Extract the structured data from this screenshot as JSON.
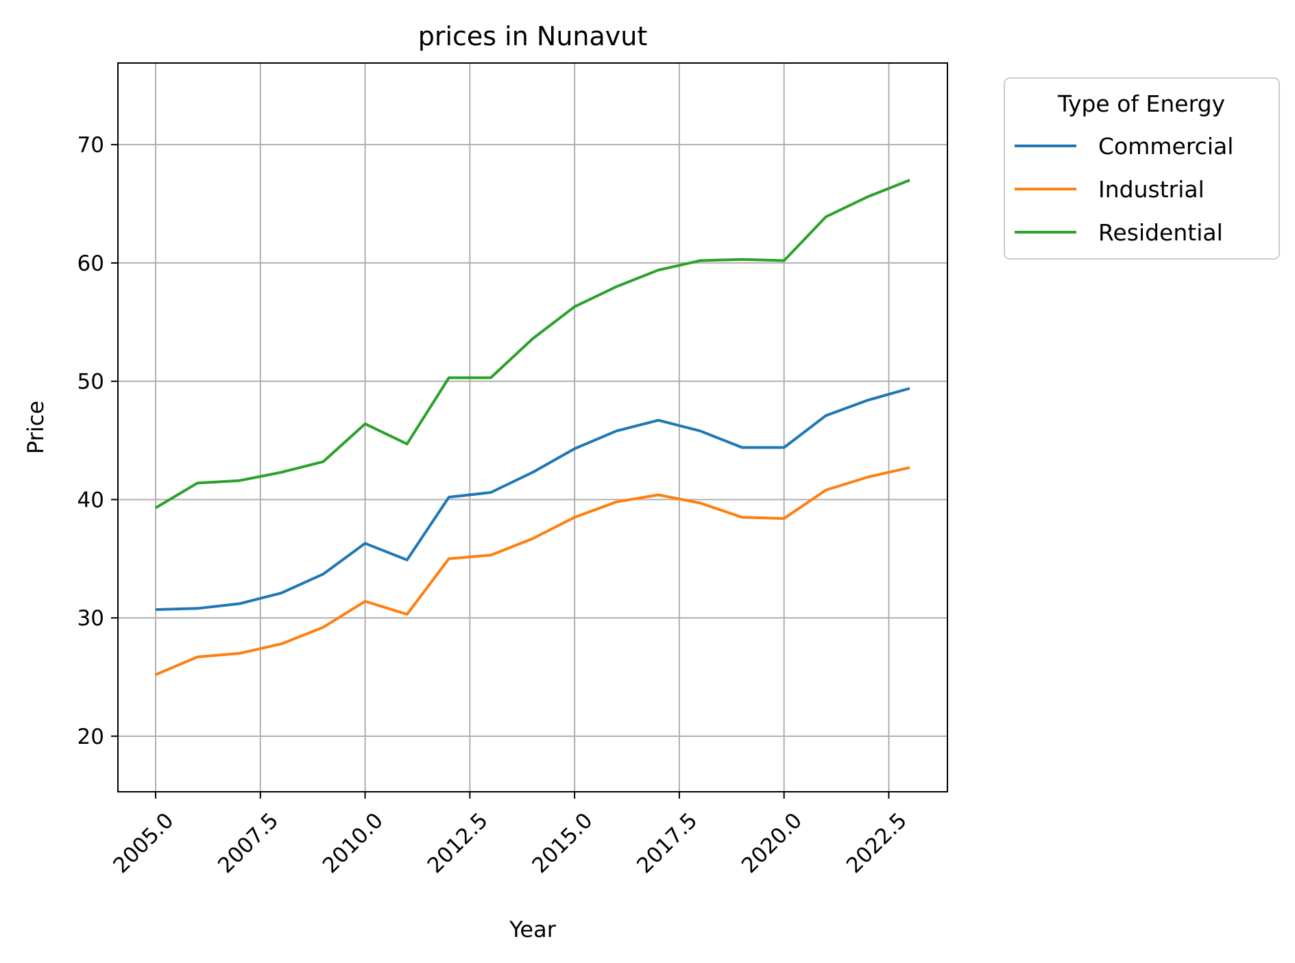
{
  "chart_data": {
    "type": "line",
    "title": "prices in Nunavut",
    "xlabel": "Year",
    "ylabel": "Price",
    "xlim": [
      2004.1,
      2023.9
    ],
    "ylim": [
      15.3,
      76.9
    ],
    "x_ticks": [
      2005.0,
      2007.5,
      2010.0,
      2012.5,
      2015.0,
      2017.5,
      2020.0,
      2022.5
    ],
    "x_tick_labels": [
      "2005.0",
      "2007.5",
      "2010.0",
      "2012.5",
      "2015.0",
      "2017.5",
      "2020.0",
      "2022.5"
    ],
    "y_ticks": [
      20,
      30,
      40,
      50,
      60,
      70
    ],
    "y_tick_labels": [
      "20",
      "30",
      "40",
      "50",
      "60",
      "70"
    ],
    "grid": true,
    "legend": {
      "title": "Type of Energy",
      "placement": "outside-top-right"
    },
    "x": [
      2005,
      2006,
      2007,
      2008,
      2009,
      2010,
      2011,
      2012,
      2013,
      2014,
      2015,
      2016,
      2017,
      2018,
      2019,
      2020,
      2021,
      2022,
      2023
    ],
    "series": [
      {
        "name": "Commercial",
        "color": "#1f77b4",
        "values": [
          30.7,
          30.8,
          31.2,
          32.1,
          33.7,
          36.3,
          34.9,
          40.2,
          40.6,
          42.3,
          44.3,
          45.8,
          46.7,
          45.8,
          44.4,
          44.4,
          47.1,
          48.4,
          49.4
        ]
      },
      {
        "name": "Industrial",
        "color": "#ff7f0e",
        "values": [
          25.2,
          26.7,
          27.0,
          27.8,
          29.2,
          31.4,
          30.3,
          35.0,
          35.3,
          36.7,
          38.5,
          39.8,
          40.4,
          39.7,
          38.5,
          38.4,
          40.8,
          41.9,
          42.7
        ]
      },
      {
        "name": "Residential",
        "color": "#2ca02c",
        "values": [
          39.3,
          41.4,
          41.6,
          42.3,
          43.2,
          46.4,
          44.7,
          50.3,
          50.3,
          53.6,
          56.3,
          58.0,
          59.4,
          60.2,
          60.3,
          60.2,
          63.9,
          65.6,
          67.0
        ]
      }
    ]
  }
}
